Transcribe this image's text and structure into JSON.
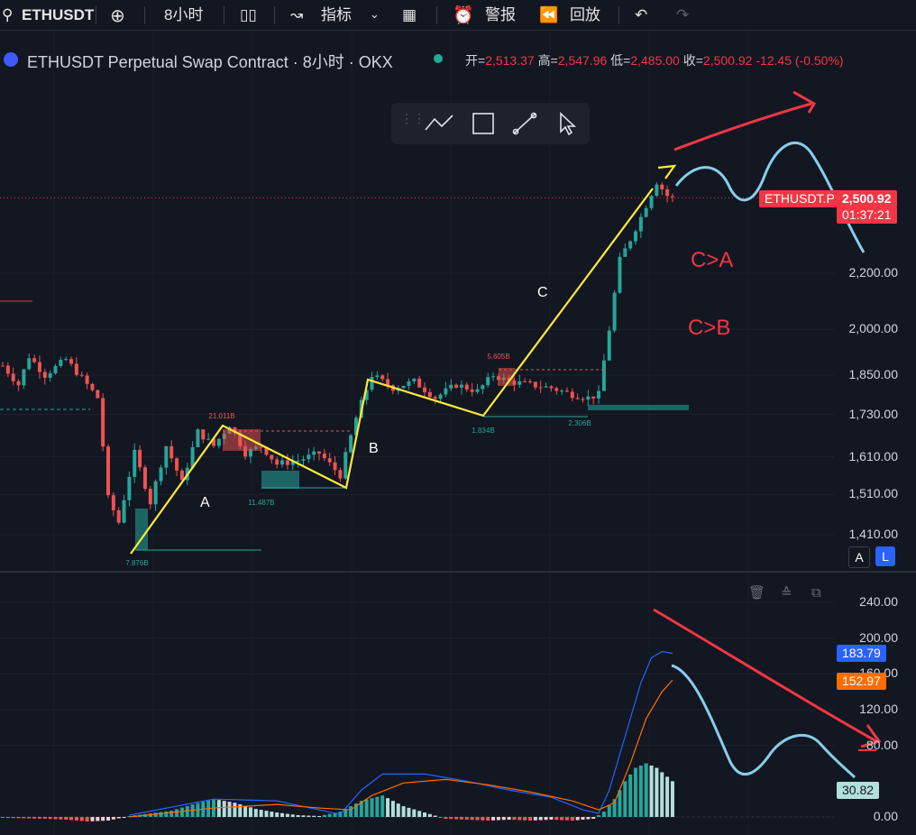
{
  "toolbar": {
    "symbol": "ETHUSDT",
    "interval": "8小时",
    "indicators_label": "指标",
    "alert_label": "警报",
    "replay_label": "回放",
    "icons": [
      "search-icon",
      "add-icon",
      "candles-icon",
      "indicators-icon",
      "chevron-down-icon",
      "layout-icon",
      "alarm-icon",
      "replay-icon",
      "undo-icon",
      "redo-icon"
    ]
  },
  "legend": {
    "title": "ETHUSDT Perpetual Swap Contract · 8小时 · OKX",
    "open_label": "开",
    "open": "2,513.37",
    "high_label": "高",
    "high": "2,547.96",
    "low_label": "低",
    "low": "2,485.00",
    "close_label": "收",
    "close": "2,500.92",
    "change": "-12.45 (-0.50%)"
  },
  "colors": {
    "bg": "#131722",
    "up": "#26a69a",
    "down": "#ef5350",
    "yellow": "#ffeb3b",
    "annotation_red": "#f23645",
    "annotation_blue": "#87ceeb",
    "macd_blue": "#2962ff",
    "macd_orange": "#ff6d00"
  },
  "price_badge": {
    "symbol": "ETHUSDT.P",
    "price": "2,500.92",
    "countdown": "01:37:21"
  },
  "scale_buttons": {
    "auto": "A",
    "log": "L"
  },
  "annotations": {
    "wave_a": "A",
    "wave_b": "B",
    "wave_c": "C",
    "c_gt_a": "C>A",
    "c_gt_b": "C>B"
  },
  "chart_data": [
    {
      "type": "candlestick",
      "symbol": "ETHUSDT Perpetual Swap Contract",
      "interval": "8小时",
      "exchange": "OKX",
      "y_ticks": [
        "2,200.00",
        "2,000.00",
        "1,850.00",
        "1,730.00",
        "1,610.00",
        "1,510.00",
        "1,410.00"
      ],
      "y_tick_values": [
        2200,
        2000,
        1850,
        1730,
        1610,
        1510,
        1410
      ],
      "ylim": [
        1380,
        2700
      ],
      "scale": "log",
      "last_price": 2500.92,
      "grid": true,
      "volume_labels": [
        {
          "text": "21.011B"
        },
        {
          "text": "11.487B"
        },
        {
          "text": "7.876B"
        },
        {
          "text": "5.605B"
        },
        {
          "text": "1.834B"
        },
        {
          "text": "2.306B"
        }
      ],
      "waves": [
        {
          "from": {
            "bar": 6,
            "price": 1410
          },
          "to": {
            "bar": 41,
            "price": 1710
          }
        },
        {
          "from": {
            "bar": 41,
            "price": 1710
          },
          "to": {
            "bar": 64,
            "price": 1550
          }
        },
        {
          "from": {
            "bar": 64,
            "price": 1550
          },
          "to": {
            "bar": 69,
            "price": 1850
          }
        },
        {
          "from": {
            "bar": 69,
            "price": 1850
          },
          "to": {
            "bar": 90,
            "price": 1740
          }
        },
        {
          "from": {
            "bar": 90,
            "price": 1740
          },
          "to": {
            "bar": 125,
            "price": 2580
          }
        }
      ]
    },
    {
      "type": "macd",
      "y_ticks": [
        "240.00",
        "200.00",
        "160.00",
        "120.00",
        "80.00",
        "0.00"
      ],
      "y_tick_values": [
        240,
        200,
        160,
        120,
        80,
        0
      ],
      "ylim": [
        -12,
        255
      ],
      "series": [
        {
          "name": "MACD",
          "last": "183.79",
          "color": "#2962ff"
        },
        {
          "name": "Signal",
          "last": "152.97",
          "color": "#ff6d00"
        },
        {
          "name": "Histogram",
          "last": "30.82",
          "color": "#b2dfdb"
        }
      ]
    }
  ]
}
